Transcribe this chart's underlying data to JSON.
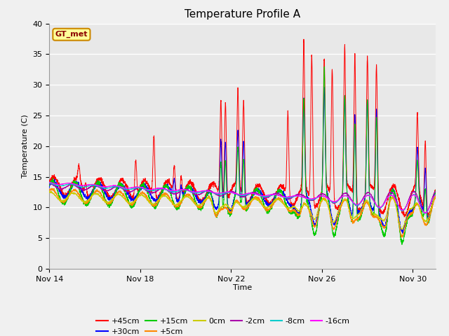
{
  "title": "Temperature Profile A",
  "xlabel": "Time",
  "ylabel": "Temperature (C)",
  "annotation": "GT_met",
  "ylim": [
    0,
    40
  ],
  "yticks": [
    0,
    5,
    10,
    15,
    20,
    25,
    30,
    35,
    40
  ],
  "xtick_labels": [
    "Nov 14",
    "Nov 18",
    "Nov 22",
    "Nov 26",
    "Nov 30"
  ],
  "xtick_positions": [
    0,
    4,
    8,
    12,
    16
  ],
  "xlim": [
    0,
    17
  ],
  "series_colors": {
    "+45cm": "#FF0000",
    "+30cm": "#0000FF",
    "+15cm": "#00CC00",
    "+5cm": "#FF8800",
    "0cm": "#CCCC00",
    "-2cm": "#AA00AA",
    "-8cm": "#00CCCC",
    "-16cm": "#FF00FF"
  },
  "bg_color": "#E8E8E8",
  "grid_color": "#FFFFFF",
  "annotation_bg": "#FFFF99",
  "annotation_border": "#CC8800",
  "annotation_text_color": "#8B0000",
  "fig_width": 6.4,
  "fig_height": 4.8,
  "dpi": 100
}
